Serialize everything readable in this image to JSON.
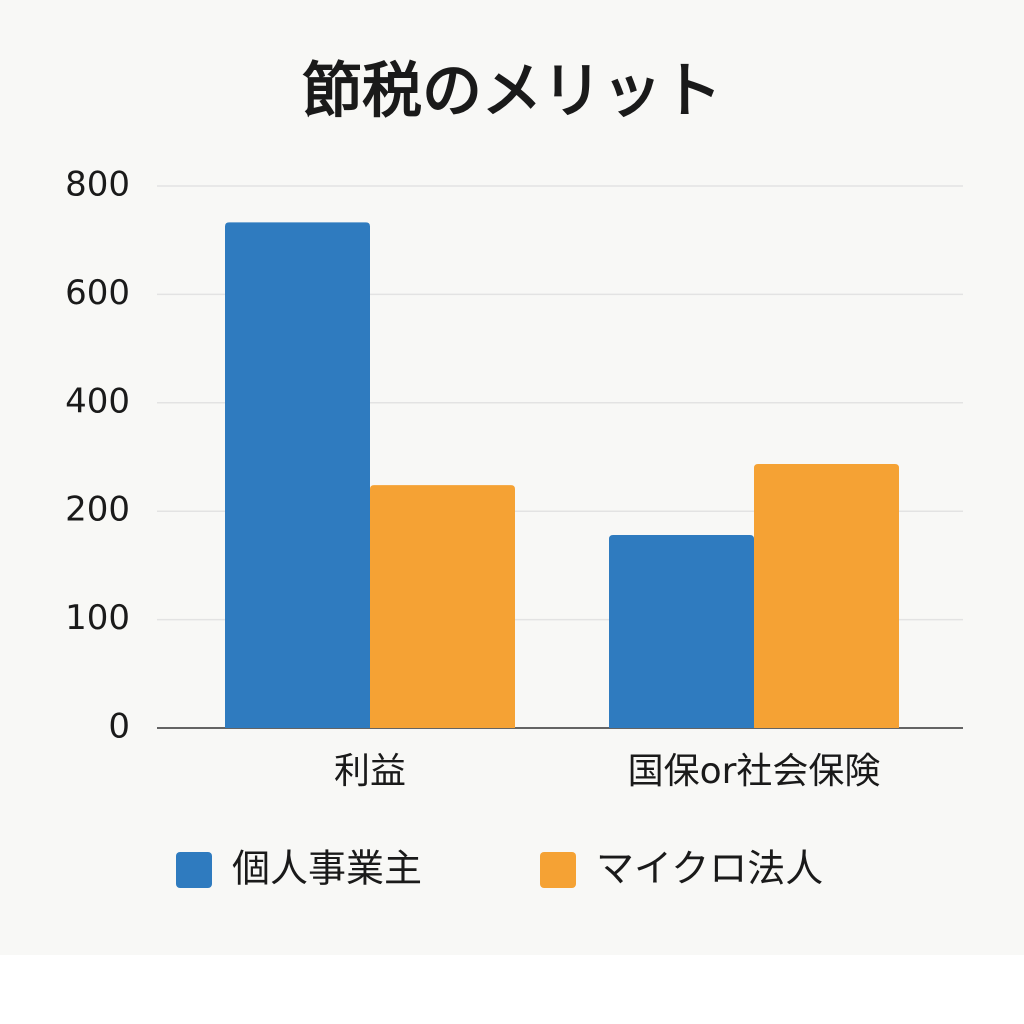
{
  "chart_data": {
    "type": "bar",
    "title": "節税のメリット",
    "categories": [
      "利益",
      "国保or社会保険"
    ],
    "series": [
      {
        "name": "個人事業主",
        "color": "#2f7bbf",
        "values": [
          733,
          178
        ]
      },
      {
        "name": "マイクロ法人",
        "color": "#f5a234",
        "values": [
          248,
          287
        ]
      }
    ],
    "ylim": [
      0,
      800
    ],
    "yticks": [
      0,
      100,
      200,
      400,
      600,
      800
    ],
    "grid": true
  }
}
